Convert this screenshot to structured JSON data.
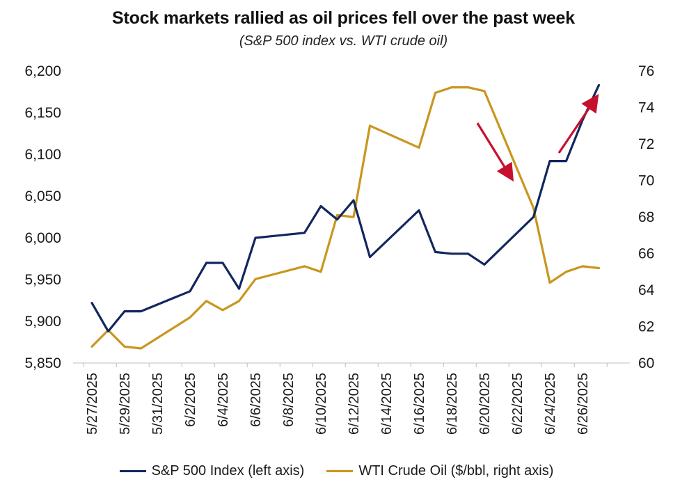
{
  "chart_data": {
    "type": "line",
    "title": "Stock markets rallied as oil prices fell over the past week",
    "subtitle": "(S&P 500 index vs. WTI crude oil)",
    "x_tick_labels": [
      "5/27/2025",
      "5/29/2025",
      "5/31/2025",
      "6/2/2025",
      "6/4/2025",
      "6/6/2025",
      "6/8/2025",
      "6/10/2025",
      "6/12/2025",
      "6/14/2025",
      "6/16/2025",
      "6/18/2025",
      "6/20/2025",
      "6/22/2025",
      "6/24/2025",
      "6/26/2025"
    ],
    "left_axis": {
      "ylim": [
        5850,
        6200
      ],
      "ticks": [
        "5,850",
        "5,900",
        "5,950",
        "6,000",
        "6,050",
        "6,100",
        "6,150",
        "6,200"
      ]
    },
    "right_axis": {
      "ylim": [
        60,
        76
      ],
      "ticks": [
        "60",
        "62",
        "64",
        "66",
        "68",
        "70",
        "72",
        "74",
        "76"
      ]
    },
    "series": [
      {
        "name": "S&P 500 Index (left axis)",
        "axis": "left",
        "color": "#12275f",
        "points": [
          [
            "5/27/2025",
            5922
          ],
          [
            "5/28/2025",
            5888
          ],
          [
            "5/29/2025",
            5912
          ],
          [
            "5/30/2025",
            5912
          ],
          [
            "6/2/2025",
            5936
          ],
          [
            "6/3/2025",
            5970
          ],
          [
            "6/4/2025",
            5970
          ],
          [
            "6/5/2025",
            5939
          ],
          [
            "6/6/2025",
            6000
          ],
          [
            "6/9/2025",
            6006
          ],
          [
            "6/10/2025",
            6038
          ],
          [
            "6/11/2025",
            6022
          ],
          [
            "6/12/2025",
            6045
          ],
          [
            "6/13/2025",
            5977
          ],
          [
            "6/16/2025",
            6033
          ],
          [
            "6/17/2025",
            5983
          ],
          [
            "6/18/2025",
            5981
          ],
          [
            "6/19/2025",
            5981
          ],
          [
            "6/20/2025",
            5968
          ],
          [
            "6/23/2025",
            6025
          ],
          [
            "6/24/2025",
            6092
          ],
          [
            "6/25/2025",
            6092
          ],
          [
            "6/26/2025",
            6141
          ],
          [
            "6/27/2025",
            6183
          ]
        ]
      },
      {
        "name": "WTI Crude Oil ($/bbl, right axis)",
        "axis": "right",
        "color": "#c9961e",
        "points": [
          [
            "5/27/2025",
            60.9
          ],
          [
            "5/28/2025",
            61.8
          ],
          [
            "5/29/2025",
            60.9
          ],
          [
            "5/30/2025",
            60.8
          ],
          [
            "6/2/2025",
            62.5
          ],
          [
            "6/3/2025",
            63.4
          ],
          [
            "6/4/2025",
            62.9
          ],
          [
            "6/5/2025",
            63.4
          ],
          [
            "6/6/2025",
            64.6
          ],
          [
            "6/9/2025",
            65.3
          ],
          [
            "6/10/2025",
            65.0
          ],
          [
            "6/11/2025",
            68.1
          ],
          [
            "6/12/2025",
            68.0
          ],
          [
            "6/13/2025",
            73.0
          ],
          [
            "6/16/2025",
            71.8
          ],
          [
            "6/17/2025",
            74.8
          ],
          [
            "6/18/2025",
            75.1
          ],
          [
            "6/19/2025",
            75.1
          ],
          [
            "6/20/2025",
            74.9
          ],
          [
            "6/23/2025",
            68.5
          ],
          [
            "6/24/2025",
            64.4
          ],
          [
            "6/25/2025",
            65.0
          ],
          [
            "6/26/2025",
            65.3
          ],
          [
            "6/27/2025",
            65.2
          ]
        ]
      }
    ],
    "annotations": [
      {
        "type": "arrow",
        "direction": "down",
        "color": "#c8102e"
      },
      {
        "type": "arrow",
        "direction": "up",
        "color": "#c8102e"
      }
    ],
    "grid": false,
    "legend_position": "bottom"
  }
}
